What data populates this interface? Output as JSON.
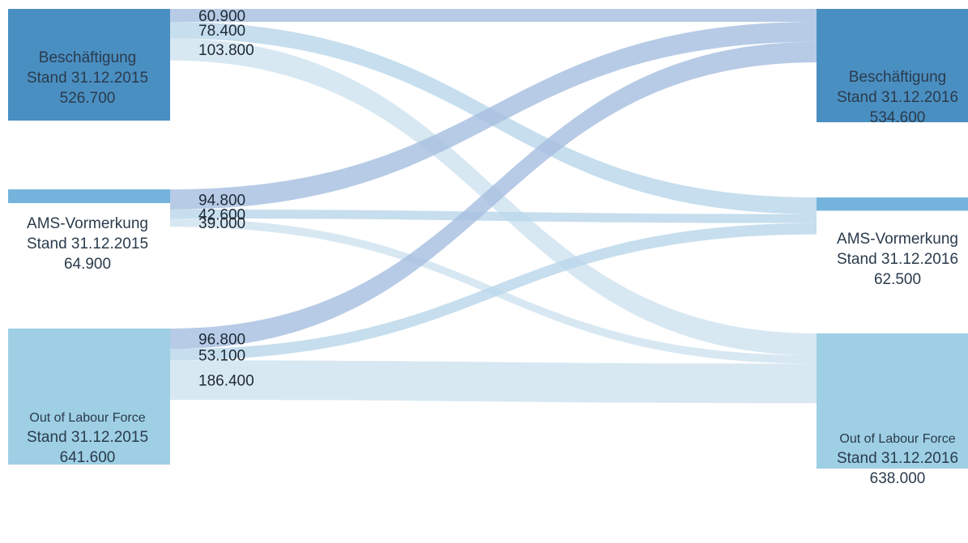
{
  "chart_data": {
    "type": "sankey",
    "sources": [
      {
        "id": "emp15",
        "name": "Beschäftigung",
        "date_label": "Stand 31.12.2015",
        "value_label": "526.700",
        "value": 526700,
        "color": "#4a8fc2"
      },
      {
        "id": "ams15",
        "name": "AMS-Vormerkung",
        "date_label": "Stand 31.12.2015",
        "value_label": "64.900",
        "value": 64900,
        "color": "#74b4dc"
      },
      {
        "id": "olf15",
        "name": "Out of Labour Force",
        "date_label": "Stand 31.12.2015",
        "value_label": "641.600",
        "value": 641600,
        "color": "#9ecfe4"
      }
    ],
    "targets": [
      {
        "id": "emp16",
        "name": "Beschäftigung",
        "date_label": "Stand 31.12.2016",
        "value_label": "534.600",
        "value": 534600,
        "color": "#4a8fc2"
      },
      {
        "id": "ams16",
        "name": "AMS-Vormerkung",
        "date_label": "Stand 31.12.2016",
        "value_label": "62.500",
        "value": 62500,
        "color": "#74b4dc"
      },
      {
        "id": "olf16",
        "name": "Out of Labour Force",
        "date_label": "Stand 31.12.2016",
        "value_label": "638.000",
        "value": 638000,
        "color": "#9ecfe4"
      }
    ],
    "flows": [
      {
        "from": "emp15",
        "to": "emp16",
        "value": 60900,
        "label": "60.900",
        "color": "#a7bfe0"
      },
      {
        "from": "emp15",
        "to": "ams16",
        "value": 78400,
        "label": "78.400",
        "color": "#bad7ea"
      },
      {
        "from": "emp15",
        "to": "olf16",
        "value": 103800,
        "label": "103.800",
        "color": "#cfe3ef"
      },
      {
        "from": "ams15",
        "to": "emp16",
        "value": 94800,
        "label": "94.800",
        "color": "#a7bfe0"
      },
      {
        "from": "ams15",
        "to": "ams16",
        "value": 42600,
        "label": "42.600",
        "color": "#bad7ea"
      },
      {
        "from": "ams15",
        "to": "olf16",
        "value": 39000,
        "label": "39.000",
        "color": "#cfe3ef"
      },
      {
        "from": "olf15",
        "to": "emp16",
        "value": 96800,
        "label": "96.800",
        "color": "#a7bfe0"
      },
      {
        "from": "olf15",
        "to": "ams16",
        "value": 53100,
        "label": "53.100",
        "color": "#bad7ea"
      },
      {
        "from": "olf15",
        "to": "olf16",
        "value": 186400,
        "label": "186.400",
        "color": "#cfe3ef"
      }
    ]
  }
}
